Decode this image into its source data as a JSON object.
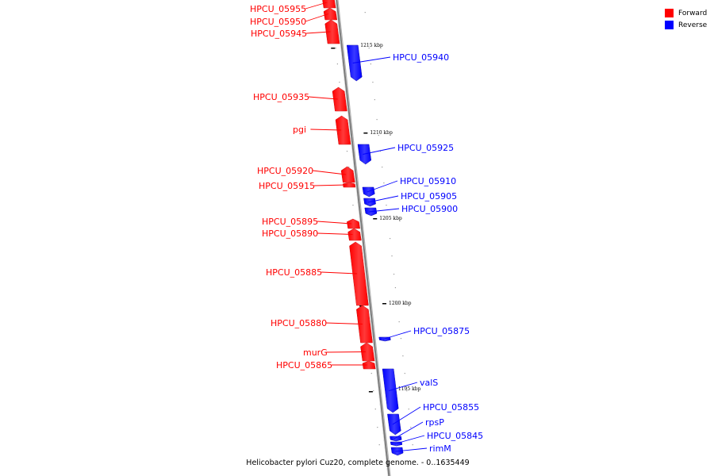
{
  "legend": {
    "forward_label": "Forward",
    "reverse_label": "Reverse",
    "forward_color": "#ff0000",
    "reverse_color": "#0000ff"
  },
  "caption": "Helicobacter pylori Cuz20, complete genome. - 0..1635449",
  "ticks": [
    "1215 kbp",
    "1210 kbp",
    "1205 kbp",
    "1200 kbp",
    "1195 kbp"
  ],
  "genes": [
    {
      "label": "HPCU_05955",
      "strand": "forward"
    },
    {
      "label": "HPCU_05950",
      "strand": "forward"
    },
    {
      "label": "HPCU_05945",
      "strand": "forward"
    },
    {
      "label": "HPCU_05940",
      "strand": "reverse"
    },
    {
      "label": "HPCU_05935",
      "strand": "forward"
    },
    {
      "label": "pgi",
      "strand": "forward"
    },
    {
      "label": "HPCU_05925",
      "strand": "reverse"
    },
    {
      "label": "HPCU_05920",
      "strand": "forward"
    },
    {
      "label": "HPCU_05915",
      "strand": "forward"
    },
    {
      "label": "HPCU_05910",
      "strand": "reverse"
    },
    {
      "label": "HPCU_05905",
      "strand": "reverse"
    },
    {
      "label": "HPCU_05900",
      "strand": "reverse"
    },
    {
      "label": "HPCU_05895",
      "strand": "forward"
    },
    {
      "label": "HPCU_05890",
      "strand": "forward"
    },
    {
      "label": "HPCU_05885",
      "strand": "forward"
    },
    {
      "label": "HPCU_05880",
      "strand": "forward"
    },
    {
      "label": "HPCU_05875",
      "strand": "reverse"
    },
    {
      "label": "murG",
      "strand": "forward"
    },
    {
      "label": "HPCU_05865",
      "strand": "forward"
    },
    {
      "label": "valS",
      "strand": "reverse"
    },
    {
      "label": "HPCU_05855",
      "strand": "reverse"
    },
    {
      "label": "rpsP",
      "strand": "reverse"
    },
    {
      "label": "HPCU_05845",
      "strand": "reverse"
    },
    {
      "label": "rimM",
      "strand": "reverse"
    }
  ]
}
